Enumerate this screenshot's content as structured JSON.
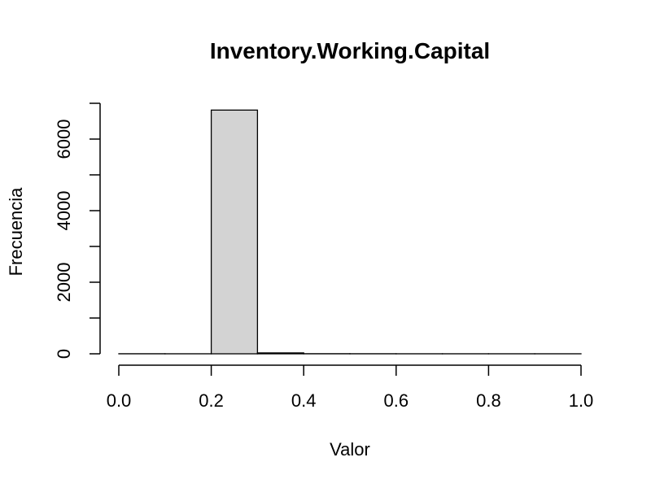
{
  "chart_data": {
    "type": "bar",
    "title": "Inventory.Working.Capital",
    "xlabel": "Valor",
    "ylabel": "Frecuencia",
    "bin_edges": [
      0.0,
      0.1,
      0.2,
      0.3,
      0.4,
      0.5,
      0.6,
      0.7,
      0.8,
      0.9,
      1.0
    ],
    "values": [
      2,
      1,
      6810,
      25,
      3,
      2,
      1,
      1,
      1,
      1
    ],
    "xlim": [
      0.0,
      1.0
    ],
    "ylim": [
      0,
      7000
    ],
    "x_ticks": [
      0.0,
      0.2,
      0.4,
      0.6,
      0.8,
      1.0
    ],
    "x_tick_labels": [
      "0.0",
      "0.2",
      "0.4",
      "0.6",
      "0.8",
      "1.0"
    ],
    "y_ticks": [
      0,
      1000,
      2000,
      3000,
      4000,
      5000,
      6000,
      7000
    ],
    "y_tick_labels": [
      "0",
      "",
      "2000",
      "",
      "4000",
      "",
      "6000",
      ""
    ],
    "bar_color": "#d3d3d3",
    "grid": false
  }
}
